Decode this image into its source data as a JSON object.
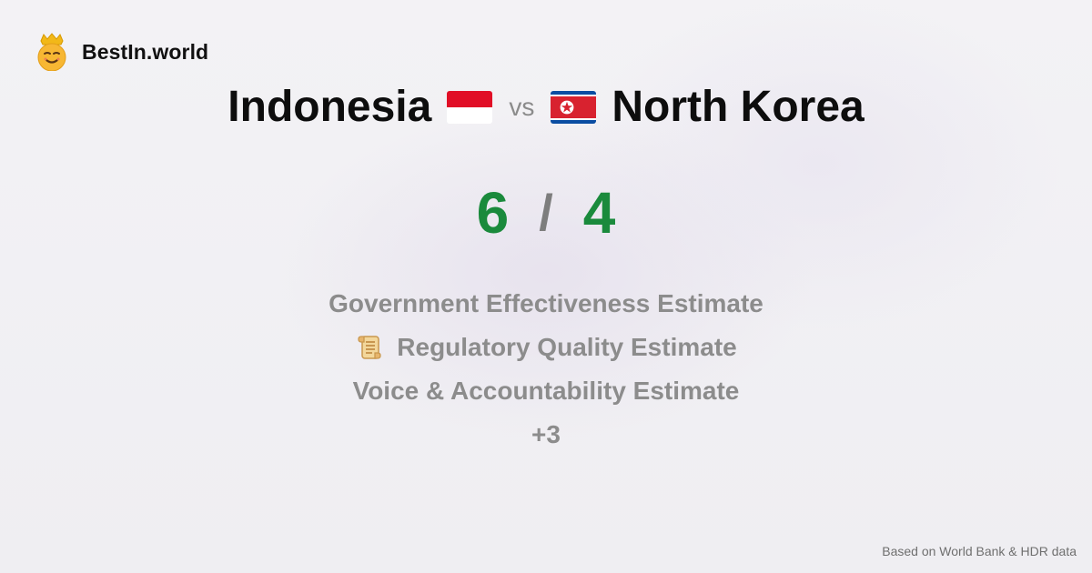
{
  "brand": {
    "name": "BestIn.world",
    "icon": "king-emoji-icon"
  },
  "comparison": {
    "left_country": "Indonesia",
    "left_flag": "indonesia-flag-icon",
    "vs_label": "vs",
    "right_country": "North Korea",
    "right_flag": "north-korea-flag-icon",
    "left_score": "6",
    "separator": "/",
    "right_score": "4"
  },
  "metrics": [
    {
      "label": "Government Effectiveness Estimate"
    },
    {
      "label": "Regulatory Quality Estimate",
      "icon": "scroll-icon"
    },
    {
      "label": "Voice & Accountability Estimate"
    }
  ],
  "more_label": "+3",
  "footer": {
    "source": "Based on World Bank & HDR data"
  },
  "colors": {
    "score": "#1a8a3c",
    "muted": "#8c8c8c",
    "title": "#0d0d0d"
  }
}
